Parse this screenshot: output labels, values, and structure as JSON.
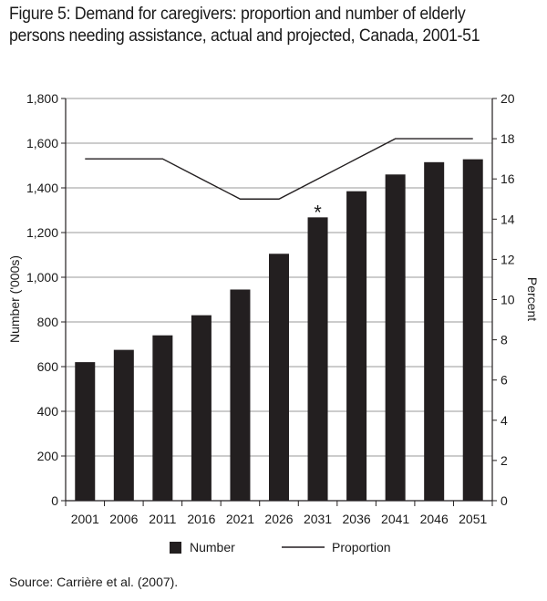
{
  "title": "Figure 5: Demand for caregivers: proportion and number of elderly persons needing assistance, actual and projected, Canada, 2001-51",
  "source": "Source: Carrière et al. (2007).",
  "chart_data": {
    "type": "bar",
    "categories": [
      "2001",
      "2006",
      "2011",
      "2016",
      "2021",
      "2026",
      "2031",
      "2036",
      "2041",
      "2046",
      "2051"
    ],
    "series": [
      {
        "name": "Number",
        "type": "bar",
        "axis": "left",
        "values": [
          620,
          675,
          740,
          830,
          945,
          1105,
          1268,
          1385,
          1460,
          1515,
          1528
        ]
      },
      {
        "name": "Proportion",
        "type": "line",
        "axis": "right",
        "values": [
          17,
          17,
          17,
          16,
          15,
          15,
          16,
          17,
          18,
          18,
          18
        ]
      }
    ],
    "annotation": {
      "category": "2031",
      "text": "*"
    },
    "ylabel": "Number ('000s)",
    "y2label": "Percent",
    "ylim": [
      0,
      1800
    ],
    "yticks": [
      0,
      200,
      400,
      600,
      800,
      1000,
      1200,
      1400,
      1600,
      1800
    ],
    "yticklabels": [
      "0",
      "200",
      "400",
      "600",
      "800",
      "1,000",
      "1,200",
      "1,400",
      "1,600",
      "1,800"
    ],
    "y2lim": [
      0,
      20
    ],
    "y2ticks": [
      0,
      2,
      4,
      6,
      8,
      10,
      12,
      14,
      16,
      18,
      20
    ],
    "grid": true,
    "legend_position": "bottom",
    "colors": {
      "bar": "#231f20",
      "line": "#231f20",
      "grid": "#9a9a9a",
      "axis": "#231f20"
    }
  }
}
